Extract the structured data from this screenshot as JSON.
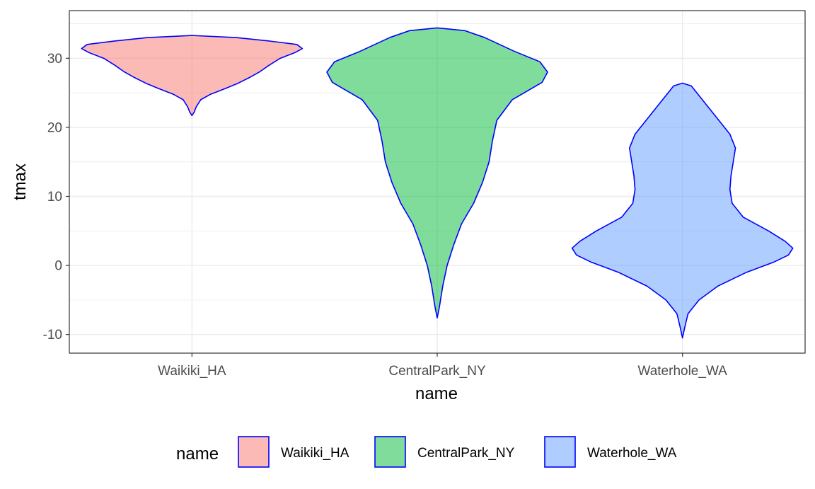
{
  "chart_data": {
    "type": "violin",
    "title": "",
    "xlabel": "name",
    "ylabel": "tmax",
    "ylim": [
      -12.7,
      36.9
    ],
    "yticks": [
      -10,
      0,
      10,
      20,
      30
    ],
    "grid": true,
    "categories": [
      "Waikiki_HA",
      "CentralPark_NY",
      "Waterhole_WA"
    ],
    "series": [
      {
        "name": "Waikiki_HA",
        "fill": "#F8766D",
        "stroke": "#0000FF",
        "min": 21.7,
        "max": 33.3,
        "profile": [
          [
            21.7,
            0.0
          ],
          [
            22.2,
            0.02
          ],
          [
            23.0,
            0.04
          ],
          [
            24.0,
            0.08
          ],
          [
            24.8,
            0.17
          ],
          [
            25.6,
            0.3
          ],
          [
            26.4,
            0.42
          ],
          [
            27.2,
            0.52
          ],
          [
            28.0,
            0.61
          ],
          [
            29.0,
            0.7
          ],
          [
            30.0,
            0.8
          ],
          [
            30.8,
            0.93
          ],
          [
            31.4,
            1.0
          ],
          [
            32.0,
            0.95
          ],
          [
            32.5,
            0.7
          ],
          [
            33.0,
            0.4
          ],
          [
            33.3,
            0.0
          ]
        ]
      },
      {
        "name": "CentralPark_NY",
        "fill": "#00BA38",
        "stroke": "#0000FF",
        "min": -7.6,
        "max": 34.4,
        "profile": [
          [
            -7.6,
            0.0
          ],
          [
            -6.0,
            0.02
          ],
          [
            -3.0,
            0.05
          ],
          [
            0.0,
            0.09
          ],
          [
            3.0,
            0.15
          ],
          [
            6.0,
            0.22
          ],
          [
            9.0,
            0.33
          ],
          [
            12.0,
            0.41
          ],
          [
            15.0,
            0.47
          ],
          [
            18.0,
            0.5
          ],
          [
            21.0,
            0.54
          ],
          [
            24.0,
            0.68
          ],
          [
            26.5,
            0.95
          ],
          [
            28.0,
            1.0
          ],
          [
            29.5,
            0.93
          ],
          [
            31.0,
            0.7
          ],
          [
            33.0,
            0.43
          ],
          [
            34.0,
            0.25
          ],
          [
            34.4,
            0.0
          ]
        ]
      },
      {
        "name": "Waterhole_WA",
        "fill": "#619CFF",
        "stroke": "#0000FF",
        "min": -10.5,
        "max": 26.4,
        "profile": [
          [
            -10.5,
            0.0
          ],
          [
            -9.0,
            0.02
          ],
          [
            -7.0,
            0.05
          ],
          [
            -5.0,
            0.15
          ],
          [
            -3.0,
            0.32
          ],
          [
            -1.0,
            0.58
          ],
          [
            0.5,
            0.83
          ],
          [
            1.5,
            0.96
          ],
          [
            2.5,
            1.0
          ],
          [
            3.5,
            0.93
          ],
          [
            5.0,
            0.78
          ],
          [
            7.0,
            0.55
          ],
          [
            9.0,
            0.45
          ],
          [
            11.0,
            0.43
          ],
          [
            13.0,
            0.44
          ],
          [
            15.0,
            0.46
          ],
          [
            17.0,
            0.48
          ],
          [
            19.0,
            0.43
          ],
          [
            21.0,
            0.33
          ],
          [
            23.0,
            0.23
          ],
          [
            25.0,
            0.13
          ],
          [
            26.0,
            0.08
          ],
          [
            26.4,
            0.0
          ]
        ]
      }
    ],
    "legend": {
      "title": "name",
      "position": "bottom",
      "items": [
        "Waikiki_HA",
        "CentralPark_NY",
        "Waterhole_WA"
      ]
    }
  }
}
